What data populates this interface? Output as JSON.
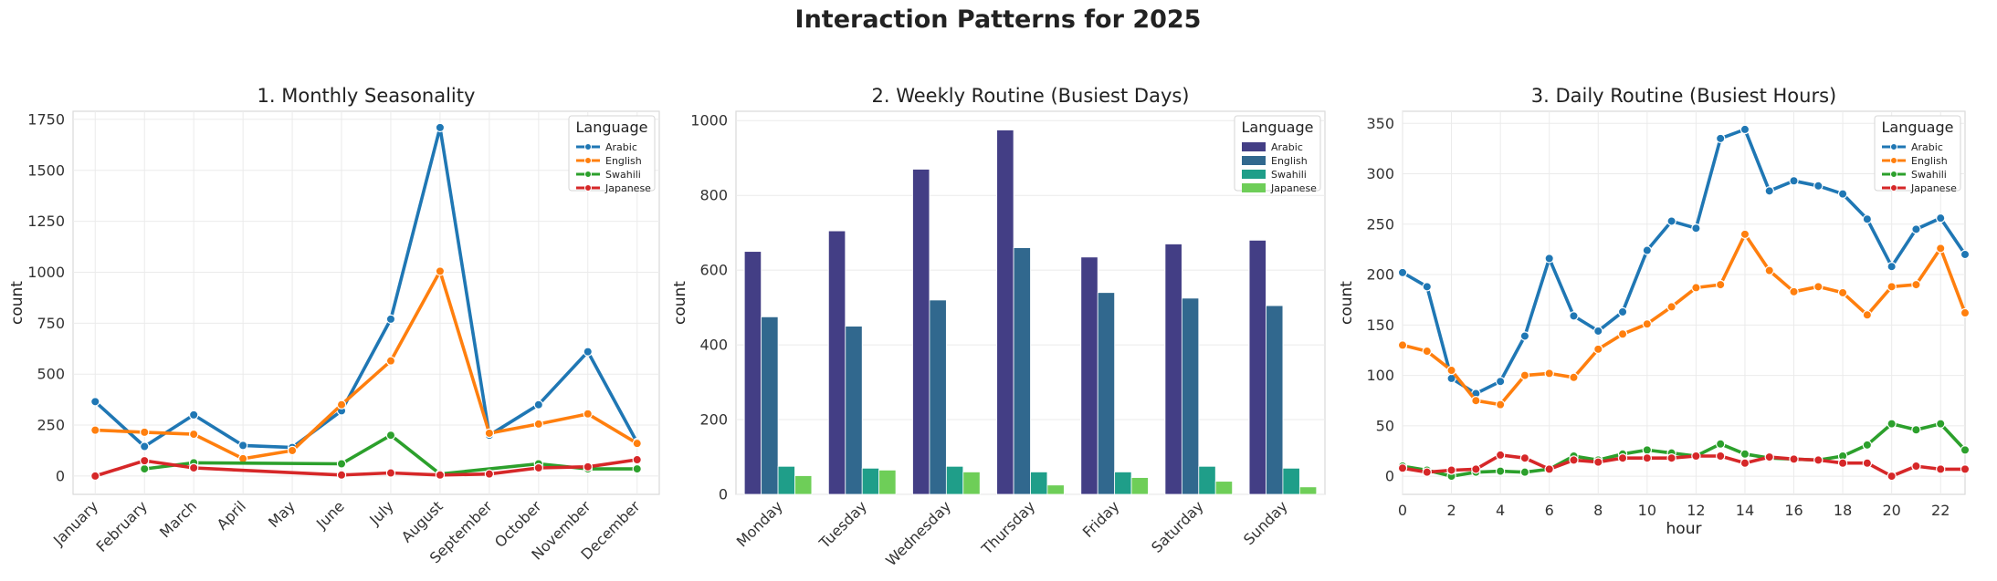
{
  "suptitle": "Interaction Patterns for 2025",
  "colors": {
    "Arabic": "#1f77b4",
    "English": "#ff7f0e",
    "Swahili": "#2ca02c",
    "Japanese": "#d62728"
  },
  "bar_colors": {
    "Arabic": "#433e85",
    "English": "#31688e",
    "Swahili": "#1f9e89",
    "Japanese": "#6ece58"
  },
  "chart_data": [
    {
      "type": "line",
      "title": "1. Monthly Seasonality",
      "xlabel": "",
      "ylabel": "count",
      "categories": [
        "January",
        "February",
        "March",
        "April",
        "May",
        "June",
        "July",
        "August",
        "September",
        "October",
        "November",
        "December"
      ],
      "yticks": [
        0,
        250,
        500,
        750,
        1000,
        1250,
        1500,
        1750
      ],
      "ylim": [
        -90,
        1790
      ],
      "grid": true,
      "legend": {
        "title": "Language",
        "placement": "top-right"
      },
      "series": [
        {
          "name": "Arabic",
          "values": [
            365,
            145,
            300,
            150,
            140,
            320,
            770,
            1710,
            200,
            350,
            610,
            165
          ]
        },
        {
          "name": "English",
          "values": [
            225,
            215,
            205,
            85,
            125,
            350,
            565,
            1005,
            210,
            255,
            305,
            160
          ]
        },
        {
          "name": "Swahili",
          "values": [
            null,
            35,
            65,
            null,
            null,
            60,
            200,
            10,
            null,
            60,
            35,
            35
          ]
        },
        {
          "name": "Japanese",
          "values": [
            0,
            75,
            40,
            null,
            null,
            5,
            15,
            5,
            10,
            40,
            45,
            80
          ]
        }
      ]
    },
    {
      "type": "bar",
      "title": "2. Weekly Routine (Busiest Days)",
      "xlabel": "",
      "ylabel": "count",
      "categories": [
        "Monday",
        "Tuesday",
        "Wednesday",
        "Thursday",
        "Friday",
        "Saturday",
        "Sunday"
      ],
      "yticks": [
        0,
        200,
        400,
        600,
        800,
        1000
      ],
      "ylim": [
        0,
        1025
      ],
      "grid": true,
      "legend": {
        "title": "Language",
        "placement": "top-right"
      },
      "series": [
        {
          "name": "Arabic",
          "values": [
            650,
            705,
            870,
            975,
            635,
            670,
            680
          ]
        },
        {
          "name": "English",
          "values": [
            475,
            450,
            520,
            660,
            540,
            525,
            505
          ]
        },
        {
          "name": "Swahili",
          "values": [
            75,
            70,
            75,
            60,
            60,
            75,
            70
          ]
        },
        {
          "name": "Japanese",
          "values": [
            50,
            65,
            60,
            25,
            45,
            35,
            20
          ]
        }
      ]
    },
    {
      "type": "line",
      "title": "3. Daily Routine (Busiest Hours)",
      "xlabel": "hour",
      "ylabel": "count",
      "x": [
        0,
        1,
        2,
        3,
        4,
        5,
        6,
        7,
        8,
        9,
        10,
        11,
        12,
        13,
        14,
        15,
        16,
        17,
        18,
        19,
        20,
        21,
        22,
        23
      ],
      "xticks": [
        0,
        2,
        4,
        6,
        8,
        10,
        12,
        14,
        16,
        18,
        20,
        22
      ],
      "xlim": [
        0,
        23
      ],
      "yticks": [
        0,
        50,
        100,
        150,
        200,
        250,
        300,
        350
      ],
      "ylim": [
        -18,
        362
      ],
      "grid": true,
      "legend": {
        "title": "Language",
        "placement": "top-right"
      },
      "series": [
        {
          "name": "Arabic",
          "values": [
            202,
            188,
            97,
            82,
            94,
            139,
            216,
            159,
            144,
            163,
            224,
            253,
            246,
            335,
            344,
            283,
            293,
            288,
            280,
            255,
            208,
            245,
            256,
            220
          ]
        },
        {
          "name": "English",
          "values": [
            130,
            124,
            105,
            75,
            71,
            100,
            102,
            98,
            126,
            141,
            151,
            168,
            187,
            190,
            240,
            204,
            183,
            188,
            182,
            160,
            188,
            190,
            226,
            162
          ]
        },
        {
          "name": "Swahili",
          "values": [
            10,
            6,
            0,
            4,
            5,
            4,
            7,
            20,
            16,
            22,
            26,
            23,
            20,
            32,
            22,
            18,
            17,
            16,
            20,
            31,
            52,
            46,
            52,
            26
          ]
        },
        {
          "name": "Japanese",
          "values": [
            8,
            4,
            6,
            7,
            21,
            18,
            7,
            16,
            14,
            18,
            18,
            18,
            20,
            20,
            13,
            19,
            17,
            16,
            13,
            13,
            0,
            10,
            7,
            7
          ]
        }
      ]
    }
  ]
}
